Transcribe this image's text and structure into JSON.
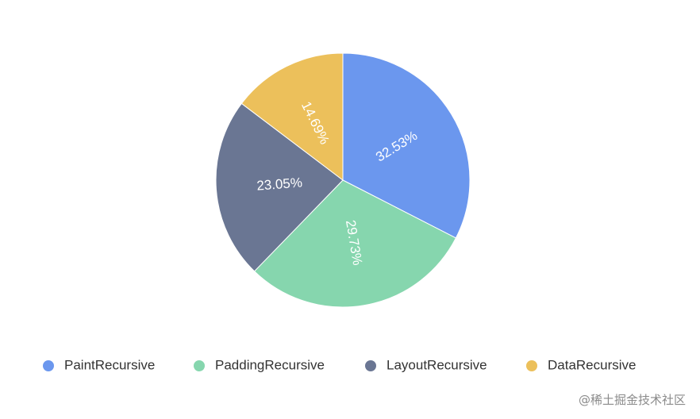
{
  "chart_data": {
    "type": "pie",
    "categories": [
      "PaintRecursive",
      "PaddingRecursive",
      "LayoutRecursive",
      "DataRecursive"
    ],
    "values": [
      32.53,
      29.73,
      23.05,
      14.69
    ],
    "labels": [
      "32.53%",
      "29.73%",
      "23.05%",
      "14.69%"
    ],
    "colors": [
      "#6b97ee",
      "#86d6ae",
      "#6a7693",
      "#ecc05b"
    ],
    "legend_position": "bottom",
    "start_angle": "12 o'clock",
    "direction": "clockwise"
  },
  "watermark": "@稀土掘金技术社区"
}
